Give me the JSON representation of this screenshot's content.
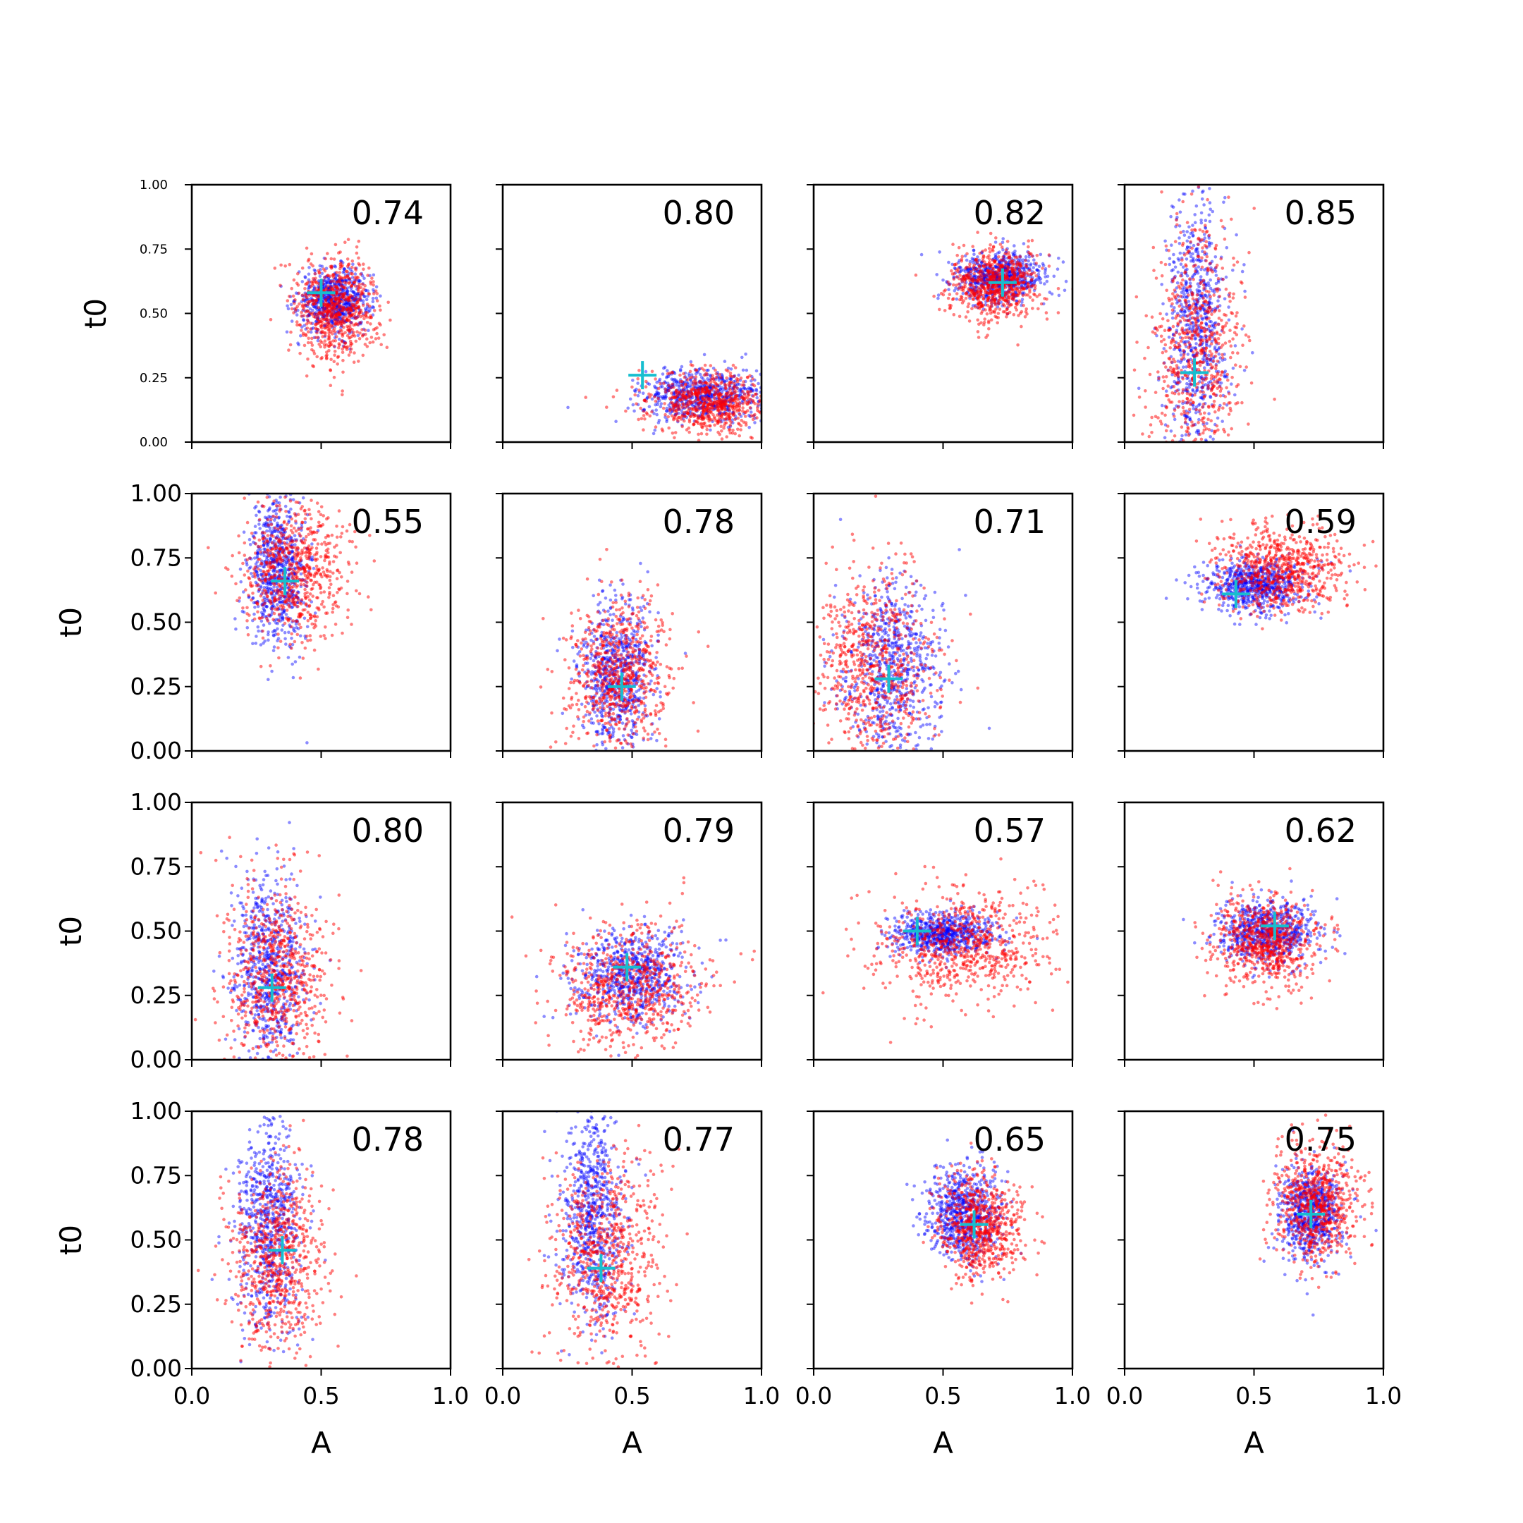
{
  "chart_data": {
    "type": "scatter",
    "layout": "4x4 grid of scatter panels",
    "xlabel": "A",
    "ylabel": "t0",
    "xlim": [
      0,
      1
    ],
    "ylim": [
      0,
      1
    ],
    "x_ticks": [
      "0.0",
      "0.5",
      "1.0"
    ],
    "y_ticks": [
      "0.00",
      "0.25",
      "0.50",
      "0.75",
      "1.00"
    ],
    "grid": false,
    "legend": "none",
    "colors": {
      "series_1": "#0000ff",
      "series_2": "#ff0000",
      "true_value_marker": "#17becf"
    },
    "panels": [
      {
        "score": "0.74",
        "marker": [
          0.5,
          0.58
        ],
        "blue": {
          "c": [
            0.55,
            0.55
          ],
          "s": [
            0.07,
            0.06
          ],
          "skew": [
            0.0,
            0.0
          ]
        },
        "red": {
          "c": [
            0.56,
            0.52
          ],
          "s": [
            0.08,
            0.1
          ],
          "skew": [
            0.0,
            0.0
          ]
        }
      },
      {
        "score": "0.80",
        "marker": [
          0.54,
          0.26
        ],
        "blue": {
          "c": [
            0.78,
            0.18
          ],
          "s": [
            0.12,
            0.05
          ],
          "skew": [
            0.0,
            0.0
          ]
        },
        "red": {
          "c": [
            0.8,
            0.15
          ],
          "s": [
            0.12,
            0.06
          ],
          "skew": [
            0.0,
            0.0
          ]
        }
      },
      {
        "score": "0.82",
        "marker": [
          0.73,
          0.62
        ],
        "blue": {
          "c": [
            0.71,
            0.64
          ],
          "s": [
            0.09,
            0.05
          ],
          "skew": [
            0.0,
            0.0
          ]
        },
        "red": {
          "c": [
            0.7,
            0.61
          ],
          "s": [
            0.09,
            0.07
          ],
          "skew": [
            0.0,
            0.0
          ]
        }
      },
      {
        "score": "0.85",
        "marker": [
          0.27,
          0.27
        ],
        "blue": {
          "c": [
            0.28,
            0.45
          ],
          "s": [
            0.06,
            0.25
          ],
          "skew": [
            0.0,
            0.0
          ]
        },
        "red": {
          "c": [
            0.28,
            0.35
          ],
          "s": [
            0.09,
            0.25
          ],
          "skew": [
            0.0,
            0.0
          ]
        }
      },
      {
        "score": "0.55",
        "marker": [
          0.36,
          0.66
        ],
        "blue": {
          "c": [
            0.33,
            0.7
          ],
          "s": [
            0.06,
            0.15
          ],
          "skew": [
            0.0,
            0.0
          ]
        },
        "red": {
          "c": [
            0.4,
            0.7
          ],
          "s": [
            0.1,
            0.13
          ],
          "skew": [
            0.0,
            0.0
          ]
        }
      },
      {
        "score": "0.78",
        "marker": [
          0.46,
          0.25
        ],
        "blue": {
          "c": [
            0.44,
            0.3
          ],
          "s": [
            0.07,
            0.14
          ],
          "skew": [
            0.0,
            0.0
          ]
        },
        "red": {
          "c": [
            0.45,
            0.3
          ],
          "s": [
            0.1,
            0.15
          ],
          "skew": [
            0.0,
            0.0
          ]
        }
      },
      {
        "score": "0.71",
        "marker": [
          0.29,
          0.28
        ],
        "blue": {
          "c": [
            0.3,
            0.32
          ],
          "s": [
            0.1,
            0.17
          ],
          "skew": [
            0.0,
            0.0
          ]
        },
        "red": {
          "c": [
            0.24,
            0.33
          ],
          "s": [
            0.11,
            0.2
          ],
          "skew": [
            0.0,
            0.0
          ]
        }
      },
      {
        "score": "0.59",
        "marker": [
          0.43,
          0.61
        ],
        "blue": {
          "c": [
            0.5,
            0.64
          ],
          "s": [
            0.1,
            0.05
          ],
          "skew": [
            0.0,
            0.0
          ]
        },
        "red": {
          "c": [
            0.6,
            0.7
          ],
          "s": [
            0.12,
            0.08
          ],
          "skew": [
            0.0,
            0.0
          ]
        }
      },
      {
        "score": "0.80",
        "marker": [
          0.31,
          0.28
        ],
        "blue": {
          "c": [
            0.3,
            0.35
          ],
          "s": [
            0.07,
            0.18
          ],
          "skew": [
            0.0,
            0.0
          ]
        },
        "red": {
          "c": [
            0.33,
            0.33
          ],
          "s": [
            0.1,
            0.18
          ],
          "skew": [
            0.0,
            0.0
          ]
        }
      },
      {
        "score": "0.79",
        "marker": [
          0.48,
          0.36
        ],
        "blue": {
          "c": [
            0.5,
            0.33
          ],
          "s": [
            0.1,
            0.09
          ],
          "skew": [
            0.0,
            0.0
          ]
        },
        "red": {
          "c": [
            0.5,
            0.28
          ],
          "s": [
            0.14,
            0.12
          ],
          "skew": [
            0.0,
            0.0
          ]
        }
      },
      {
        "score": "0.57",
        "marker": [
          0.4,
          0.5
        ],
        "blue": {
          "c": [
            0.5,
            0.49
          ],
          "s": [
            0.1,
            0.04
          ],
          "skew": [
            0.0,
            0.0
          ]
        },
        "red": {
          "c": [
            0.57,
            0.44
          ],
          "s": [
            0.16,
            0.1
          ],
          "skew": [
            0.0,
            0.0
          ]
        }
      },
      {
        "score": "0.62",
        "marker": [
          0.58,
          0.52
        ],
        "blue": {
          "c": [
            0.55,
            0.5
          ],
          "s": [
            0.09,
            0.06
          ],
          "skew": [
            0.0,
            0.0
          ]
        },
        "red": {
          "c": [
            0.55,
            0.46
          ],
          "s": [
            0.1,
            0.09
          ],
          "skew": [
            0.0,
            0.0
          ]
        }
      },
      {
        "score": "0.78",
        "marker": [
          0.35,
          0.46
        ],
        "blue": {
          "c": [
            0.3,
            0.55
          ],
          "s": [
            0.06,
            0.2
          ],
          "skew": [
            0.0,
            0.0
          ]
        },
        "red": {
          "c": [
            0.33,
            0.42
          ],
          "s": [
            0.09,
            0.18
          ],
          "skew": [
            0.0,
            0.0
          ]
        }
      },
      {
        "score": "0.77",
        "marker": [
          0.38,
          0.39
        ],
        "blue": {
          "c": [
            0.35,
            0.6
          ],
          "s": [
            0.06,
            0.2
          ],
          "skew": [
            0.0,
            0.0
          ]
        },
        "red": {
          "c": [
            0.4,
            0.45
          ],
          "s": [
            0.1,
            0.2
          ],
          "skew": [
            0.0,
            0.0
          ]
        }
      },
      {
        "score": "0.65",
        "marker": [
          0.62,
          0.56
        ],
        "blue": {
          "c": [
            0.58,
            0.6
          ],
          "s": [
            0.07,
            0.09
          ],
          "skew": [
            0.0,
            0.0
          ]
        },
        "red": {
          "c": [
            0.65,
            0.55
          ],
          "s": [
            0.08,
            0.1
          ],
          "skew": [
            0.0,
            0.0
          ]
        }
      },
      {
        "score": "0.75",
        "marker": [
          0.72,
          0.6
        ],
        "blue": {
          "c": [
            0.72,
            0.6
          ],
          "s": [
            0.06,
            0.09
          ],
          "skew": [
            0.0,
            0.0
          ]
        },
        "red": {
          "c": [
            0.74,
            0.63
          ],
          "s": [
            0.08,
            0.12
          ],
          "skew": [
            0.0,
            0.0
          ]
        }
      }
    ]
  }
}
